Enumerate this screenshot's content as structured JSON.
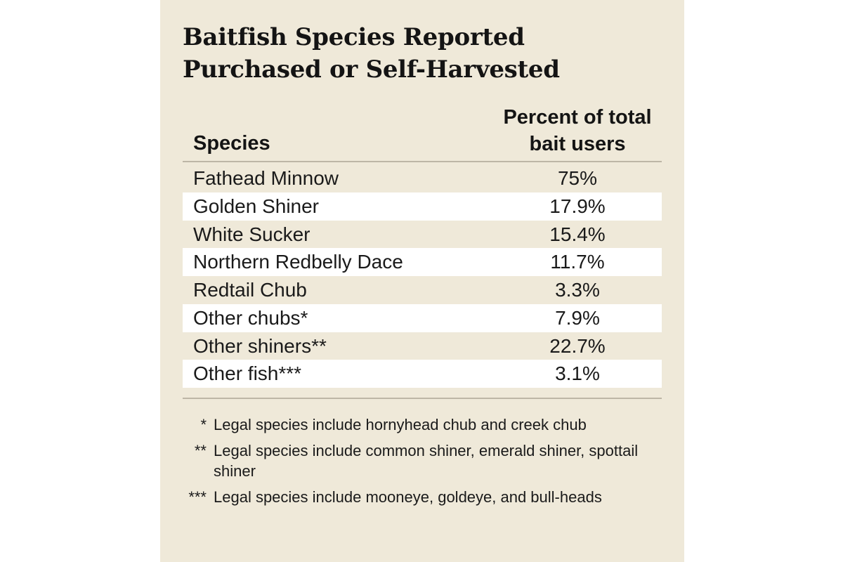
{
  "chart_data": {
    "type": "table",
    "title": "Baitfish Species Reported Purchased or Self-Harvested",
    "columns": [
      "Species",
      "Percent of total bait users"
    ],
    "rows": [
      {
        "species": "Fathead Minnow",
        "percent": "75%"
      },
      {
        "species": "Golden Shiner",
        "percent": "17.9%"
      },
      {
        "species": "White Sucker",
        "percent": "15.4%"
      },
      {
        "species": "Northern Redbelly Dace",
        "percent": "11.7%"
      },
      {
        "species": "Redtail Chub",
        "percent": "3.3%"
      },
      {
        "species": "Other chubs*",
        "percent": "7.9%"
      },
      {
        "species": "Other shiners**",
        "percent": "22.7%"
      },
      {
        "species": "Other fish***",
        "percent": "3.1%"
      }
    ],
    "footnotes": [
      {
        "marker": "*",
        "text": "Legal species include hornyhead chub and creek chub"
      },
      {
        "marker": "**",
        "text": "Legal species include common shiner, emerald shiner, spottail shiner"
      },
      {
        "marker": "***",
        "text": "Legal species include mooneye, goldeye, and bull-heads"
      }
    ]
  },
  "colors": {
    "panel_background": "#efe9d9",
    "alt_row": "#ffffff",
    "rule": "#bdb6a6",
    "text": "#141414"
  }
}
